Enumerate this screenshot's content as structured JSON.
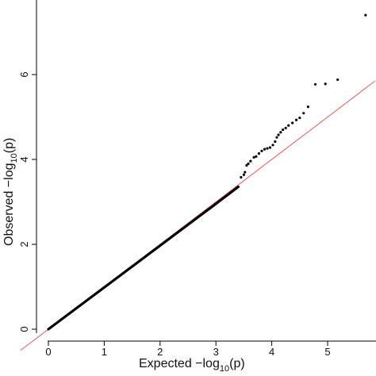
{
  "chart_data": {
    "type": "scatter",
    "title": "",
    "xlabel": {
      "main": "Expected  −log",
      "sub": "10",
      "tail": "(p)"
    },
    "ylabel": {
      "main": "Observed  −log",
      "sub": "10",
      "tail": "(p)"
    },
    "xlim": [
      -0.5,
      5.85
    ],
    "ylim": [
      -0.45,
      7.55
    ],
    "x_ticks": [
      0,
      1,
      2,
      3,
      4,
      5
    ],
    "y_ticks": [
      0,
      2,
      4,
      6
    ],
    "x_tick_labels": [
      "0",
      "1",
      "2",
      "3",
      "4",
      "5"
    ],
    "y_tick_labels": [
      "0",
      "2",
      "4",
      "6"
    ],
    "grid": false,
    "reference_line": {
      "from": [
        -0.5,
        -0.5
      ],
      "to": [
        5.85,
        5.85
      ],
      "color": "#e05a5a"
    },
    "point_color": "#000000",
    "dense_segments": [
      {
        "x_start": 0.0,
        "x_end": 3.0,
        "slope": 0.985
      },
      {
        "x_start": 3.0,
        "x_end": 3.4,
        "slope": 1.0
      }
    ],
    "points": [
      {
        "x": 3.45,
        "y": 3.58
      },
      {
        "x": 3.5,
        "y": 3.64
      },
      {
        "x": 3.52,
        "y": 3.7
      },
      {
        "x": 3.55,
        "y": 3.86
      },
      {
        "x": 3.58,
        "y": 3.9
      },
      {
        "x": 3.62,
        "y": 3.96
      },
      {
        "x": 3.68,
        "y": 4.05
      },
      {
        "x": 3.72,
        "y": 4.07
      },
      {
        "x": 3.77,
        "y": 4.14
      },
      {
        "x": 3.82,
        "y": 4.2
      },
      {
        "x": 3.87,
        "y": 4.24
      },
      {
        "x": 3.92,
        "y": 4.26
      },
      {
        "x": 3.97,
        "y": 4.28
      },
      {
        "x": 4.02,
        "y": 4.34
      },
      {
        "x": 4.06,
        "y": 4.42
      },
      {
        "x": 4.09,
        "y": 4.52
      },
      {
        "x": 4.12,
        "y": 4.58
      },
      {
        "x": 4.16,
        "y": 4.64
      },
      {
        "x": 4.2,
        "y": 4.7
      },
      {
        "x": 4.25,
        "y": 4.74
      },
      {
        "x": 4.3,
        "y": 4.8
      },
      {
        "x": 4.37,
        "y": 4.86
      },
      {
        "x": 4.44,
        "y": 4.93
      },
      {
        "x": 4.5,
        "y": 4.98
      },
      {
        "x": 4.57,
        "y": 5.09
      },
      {
        "x": 4.65,
        "y": 5.24
      },
      {
        "x": 4.78,
        "y": 5.77
      },
      {
        "x": 4.96,
        "y": 5.78
      },
      {
        "x": 5.18,
        "y": 5.88
      },
      {
        "x": 5.68,
        "y": 7.4
      }
    ]
  }
}
